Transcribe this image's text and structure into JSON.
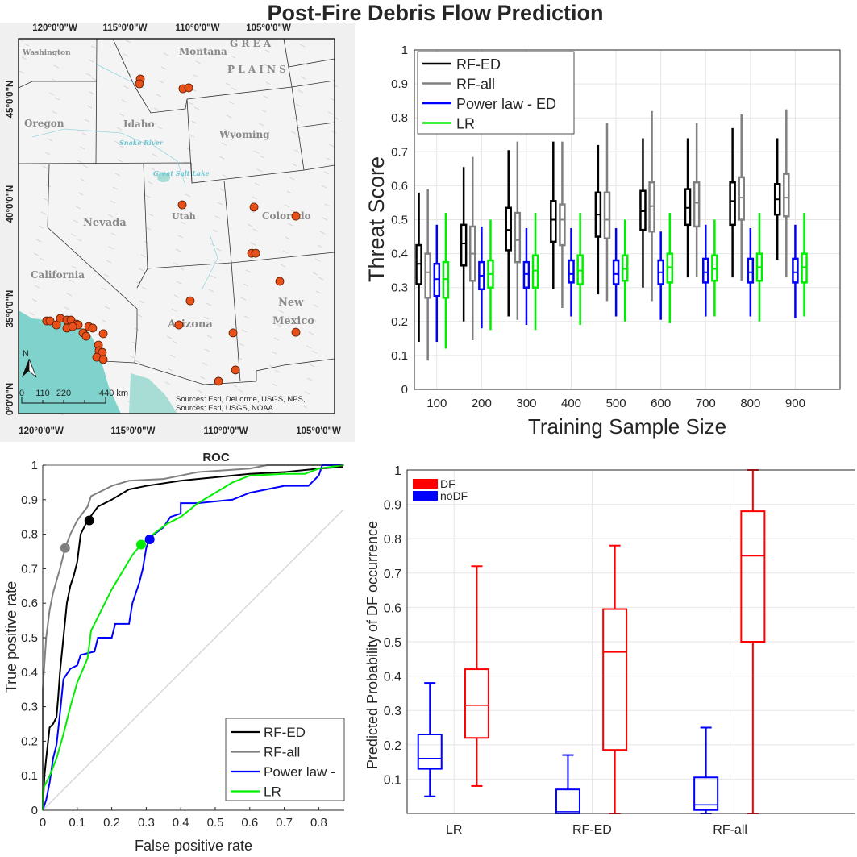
{
  "title": "Post-Fire Debris Flow Prediction",
  "map": {
    "top_ticks": [
      "120°0'0\"W",
      "115°0'0\"W",
      "110°0'0\"W",
      "105°0'0\"W"
    ],
    "bottom_ticks": [
      "120°0'0\"W",
      "115°0'0\"W",
      "110°0'0\"W",
      "105°0'0\"W"
    ],
    "left_ticks": [
      "45°0'0\"N",
      "40°0'0\"N",
      "35°0'0\"N",
      "0°0'0\"N"
    ],
    "labels": [
      "Washington",
      "Montana",
      "Oregon",
      "Idaho",
      "Wyoming",
      "Nevada",
      "Utah",
      "Colorado",
      "California",
      "Arizona",
      "New",
      "Mexico",
      "G R E A",
      "P L A I N S",
      "Snake River",
      "Great Salt Lake"
    ],
    "north": "N",
    "scale_bar": [
      "0",
      "110",
      "220",
      "440 km"
    ],
    "sources": [
      "Sources: Esri, DeLorme, USGS, NPS,",
      "Sources: Esri, USGS, NOAA"
    ],
    "point_color": "#e8501a",
    "points_lonlat": [
      [
        -114.65,
        45.96
      ],
      [
        -114.7,
        45.73
      ],
      [
        -112.35,
        45.5
      ],
      [
        -112.04,
        45.54
      ],
      [
        -112.39,
        39.96
      ],
      [
        -108.52,
        39.85
      ],
      [
        -106.26,
        39.42
      ],
      [
        -108.65,
        37.65
      ],
      [
        -108.43,
        37.65
      ],
      [
        -107.13,
        36.31
      ],
      [
        -111.96,
        35.38
      ],
      [
        -112.57,
        34.23
      ],
      [
        -109.65,
        33.85
      ],
      [
        -106.26,
        33.88
      ],
      [
        -109.52,
        32.08
      ],
      [
        -110.43,
        31.54
      ],
      [
        -119.7,
        34.42
      ],
      [
        -119.52,
        34.42
      ],
      [
        -119.17,
        34.23
      ],
      [
        -118.96,
        34.54
      ],
      [
        -118.61,
        34.46
      ],
      [
        -118.61,
        34.08
      ],
      [
        -118.39,
        34.46
      ],
      [
        -118.09,
        34.27
      ],
      [
        -118.0,
        34.23
      ],
      [
        -118.3,
        34.15
      ],
      [
        -117.74,
        33.85
      ],
      [
        -117.57,
        33.69
      ],
      [
        -117.43,
        34.15
      ],
      [
        -117.22,
        34.08
      ],
      [
        -116.65,
        33.81
      ],
      [
        -116.91,
        33.27
      ],
      [
        -116.87,
        33.0
      ],
      [
        -116.7,
        32.92
      ],
      [
        -117.0,
        32.69
      ],
      [
        -116.65,
        32.58
      ]
    ]
  },
  "chart_data": [
    {
      "type": "line",
      "title": "ROC",
      "xlabel": "False positive rate",
      "ylabel": "True positive rate",
      "xlim": [
        0,
        0.87
      ],
      "ylim": [
        0,
        1
      ],
      "xticks": [
        "0",
        "0.1",
        "0.2",
        "0.3",
        "0.4",
        "0.5",
        "0.6",
        "0.7",
        "0.8"
      ],
      "yticks": [
        "0",
        "0.1",
        "0.2",
        "0.3",
        "0.4",
        "0.5",
        "0.6",
        "0.7",
        "0.8",
        "0.9",
        "1"
      ],
      "grid": false,
      "legend_position": "bottom-right",
      "series": [
        {
          "name": "RF-ED",
          "color": "#000000",
          "marker": [
            0.135,
            0.84
          ],
          "points": [
            [
              0,
              0
            ],
            [
              0.005,
              0.1
            ],
            [
              0.01,
              0.15
            ],
            [
              0.02,
              0.24
            ],
            [
              0.03,
              0.25
            ],
            [
              0.04,
              0.27
            ],
            [
              0.045,
              0.33
            ],
            [
              0.05,
              0.4
            ],
            [
              0.06,
              0.5
            ],
            [
              0.065,
              0.55
            ],
            [
              0.07,
              0.6
            ],
            [
              0.08,
              0.65
            ],
            [
              0.09,
              0.68
            ],
            [
              0.1,
              0.72
            ],
            [
              0.11,
              0.8
            ],
            [
              0.13,
              0.84
            ],
            [
              0.16,
              0.88
            ],
            [
              0.2,
              0.9
            ],
            [
              0.25,
              0.93
            ],
            [
              0.3,
              0.94
            ],
            [
              0.4,
              0.955
            ],
            [
              0.5,
              0.965
            ],
            [
              0.6,
              0.975
            ],
            [
              0.7,
              0.98
            ],
            [
              0.8,
              0.99
            ],
            [
              0.87,
              0.995
            ]
          ]
        },
        {
          "name": "RF-all",
          "color": "#808080",
          "marker": [
            0.065,
            0.76
          ],
          "points": [
            [
              0,
              0
            ],
            [
              0,
              0.35
            ],
            [
              0.01,
              0.5
            ],
            [
              0.02,
              0.58
            ],
            [
              0.03,
              0.63
            ],
            [
              0.05,
              0.7
            ],
            [
              0.065,
              0.76
            ],
            [
              0.08,
              0.8
            ],
            [
              0.1,
              0.84
            ],
            [
              0.13,
              0.88
            ],
            [
              0.14,
              0.91
            ],
            [
              0.2,
              0.94
            ],
            [
              0.25,
              0.955
            ],
            [
              0.35,
              0.96
            ],
            [
              0.45,
              0.98
            ],
            [
              0.6,
              0.99
            ],
            [
              0.65,
              1
            ],
            [
              0.87,
              1
            ]
          ]
        },
        {
          "name": "Power law -",
          "color": "#0000ff",
          "marker": [
            0.31,
            0.785
          ],
          "points": [
            [
              0,
              0
            ],
            [
              0.01,
              0.03
            ],
            [
              0.02,
              0.08
            ],
            [
              0.03,
              0.15
            ],
            [
              0.04,
              0.19
            ],
            [
              0.05,
              0.28
            ],
            [
              0.06,
              0.38
            ],
            [
              0.08,
              0.41
            ],
            [
              0.1,
              0.42
            ],
            [
              0.11,
              0.45
            ],
            [
              0.15,
              0.46
            ],
            [
              0.16,
              0.5
            ],
            [
              0.2,
              0.5
            ],
            [
              0.21,
              0.54
            ],
            [
              0.25,
              0.54
            ],
            [
              0.26,
              0.6
            ],
            [
              0.28,
              0.66
            ],
            [
              0.29,
              0.7
            ],
            [
              0.3,
              0.76
            ],
            [
              0.31,
              0.79
            ],
            [
              0.35,
              0.82
            ],
            [
              0.37,
              0.85
            ],
            [
              0.4,
              0.86
            ],
            [
              0.4,
              0.89
            ],
            [
              0.45,
              0.89
            ],
            [
              0.55,
              0.9
            ],
            [
              0.6,
              0.92
            ],
            [
              0.7,
              0.94
            ],
            [
              0.77,
              0.94
            ],
            [
              0.8,
              0.97
            ],
            [
              0.81,
              1
            ],
            [
              0.87,
              1
            ]
          ]
        },
        {
          "name": "LR",
          "color": "#00ee00",
          "marker": [
            0.285,
            0.77
          ],
          "points": [
            [
              0,
              0
            ],
            [
              0,
              0.06
            ],
            [
              0.02,
              0.1
            ],
            [
              0.04,
              0.15
            ],
            [
              0.06,
              0.22
            ],
            [
              0.08,
              0.3
            ],
            [
              0.1,
              0.37
            ],
            [
              0.13,
              0.44
            ],
            [
              0.14,
              0.52
            ],
            [
              0.17,
              0.58
            ],
            [
              0.2,
              0.64
            ],
            [
              0.23,
              0.69
            ],
            [
              0.26,
              0.74
            ],
            [
              0.285,
              0.77
            ],
            [
              0.32,
              0.8
            ],
            [
              0.36,
              0.83
            ],
            [
              0.4,
              0.85
            ],
            [
              0.45,
              0.89
            ],
            [
              0.5,
              0.92
            ],
            [
              0.55,
              0.95
            ],
            [
              0.6,
              0.97
            ],
            [
              0.7,
              0.975
            ],
            [
              0.76,
              0.975
            ],
            [
              0.8,
              0.99
            ],
            [
              0.87,
              1
            ]
          ]
        }
      ]
    },
    {
      "type": "box",
      "xlabel": "Training Sample Size",
      "ylabel": "Threat Score",
      "ylim": [
        0,
        1
      ],
      "categories": [
        "100",
        "200",
        "300",
        "400",
        "500",
        "600",
        "700",
        "800",
        "900"
      ],
      "yticks": [
        "0",
        "0.1",
        "0.2",
        "0.3",
        "0.4",
        "0.5",
        "0.6",
        "0.7",
        "0.8",
        "0.9",
        "1"
      ],
      "grid": true,
      "legend_position": "top-left",
      "box_stats_order": [
        "min",
        "q1",
        "median",
        "q3",
        "max"
      ],
      "series": [
        {
          "name": "RF-ED",
          "color": "#000000",
          "boxes": [
            [
              0.14,
              0.31,
              0.37,
              0.425,
              0.58
            ],
            [
              0.2,
              0.365,
              0.43,
              0.485,
              0.655
            ],
            [
              0.215,
              0.41,
              0.47,
              0.535,
              0.705
            ],
            [
              0.295,
              0.435,
              0.5,
              0.555,
              0.73
            ],
            [
              0.28,
              0.45,
              0.515,
              0.58,
              0.72
            ],
            [
              0.3,
              0.47,
              0.525,
              0.585,
              0.74
            ],
            [
              0.33,
              0.485,
              0.535,
              0.59,
              0.74
            ],
            [
              0.33,
              0.485,
              0.555,
              0.61,
              0.77
            ],
            [
              0.38,
              0.515,
              0.56,
              0.605,
              0.74
            ]
          ]
        },
        {
          "name": "RF-all",
          "color": "#808080",
          "boxes": [
            [
              0.085,
              0.27,
              0.345,
              0.4,
              0.59
            ],
            [
              0.145,
              0.32,
              0.4,
              0.48,
              0.685
            ],
            [
              0.205,
              0.375,
              0.44,
              0.52,
              0.73
            ],
            [
              0.24,
              0.425,
              0.5,
              0.545,
              0.73
            ],
            [
              0.26,
              0.445,
              0.5,
              0.58,
              0.785
            ],
            [
              0.26,
              0.465,
              0.54,
              0.61,
              0.82
            ],
            [
              0.33,
              0.48,
              0.55,
              0.61,
              0.785
            ],
            [
              0.32,
              0.5,
              0.565,
              0.625,
              0.81
            ],
            [
              0.33,
              0.51,
              0.565,
              0.635,
              0.825
            ]
          ]
        },
        {
          "name": "Power law - ED",
          "color": "#0000ff",
          "boxes": [
            [
              0.14,
              0.275,
              0.325,
              0.37,
              0.485
            ],
            [
              0.18,
              0.295,
              0.335,
              0.375,
              0.48
            ],
            [
              0.19,
              0.3,
              0.34,
              0.375,
              0.475
            ],
            [
              0.215,
              0.315,
              0.34,
              0.38,
              0.475
            ],
            [
              0.215,
              0.31,
              0.34,
              0.38,
              0.475
            ],
            [
              0.205,
              0.31,
              0.345,
              0.38,
              0.465
            ],
            [
              0.215,
              0.315,
              0.345,
              0.385,
              0.485
            ],
            [
              0.215,
              0.315,
              0.345,
              0.385,
              0.475
            ],
            [
              0.21,
              0.315,
              0.345,
              0.385,
              0.485
            ]
          ]
        },
        {
          "name": "LR",
          "color": "#00ee00",
          "boxes": [
            [
              0.12,
              0.27,
              0.325,
              0.375,
              0.52
            ],
            [
              0.175,
              0.3,
              0.34,
              0.38,
              0.5
            ],
            [
              0.175,
              0.3,
              0.35,
              0.395,
              0.52
            ],
            [
              0.19,
              0.31,
              0.35,
              0.395,
              0.52
            ],
            [
              0.2,
              0.32,
              0.355,
              0.395,
              0.5
            ],
            [
              0.195,
              0.315,
              0.36,
              0.4,
              0.52
            ],
            [
              0.215,
              0.32,
              0.355,
              0.395,
              0.5
            ],
            [
              0.2,
              0.32,
              0.36,
              0.4,
              0.52
            ],
            [
              0.215,
              0.315,
              0.36,
              0.4,
              0.52
            ]
          ]
        }
      ]
    },
    {
      "type": "box",
      "ylabel": "Predicted Probability of DF occurrence",
      "ylim": [
        0,
        1
      ],
      "categories": [
        "LR",
        "RF-ED",
        "RF-all"
      ],
      "yticks": [
        "0.1",
        "0.2",
        "0.3",
        "0.4",
        "0.5",
        "0.6",
        "0.7",
        "0.8",
        "0.9",
        "1"
      ],
      "grid": true,
      "legend_position": "top-left",
      "box_stats_order": [
        "min",
        "q1",
        "median",
        "q3",
        "max"
      ],
      "series": [
        {
          "name": "noDF",
          "color": "#0000ff",
          "boxes": [
            [
              0.05,
              0.13,
              0.16,
              0.23,
              0.38
            ],
            [
              0.0,
              0.0,
              0.005,
              0.07,
              0.17
            ],
            [
              0.0,
              0.01,
              0.025,
              0.105,
              0.25
            ]
          ]
        },
        {
          "name": "DF",
          "color": "#ff0000",
          "boxes": [
            [
              0.08,
              0.22,
              0.315,
              0.42,
              0.72
            ],
            [
              0.0,
              0.185,
              0.47,
              0.595,
              0.78
            ],
            [
              0.0,
              0.5,
              0.75,
              0.88,
              1.0
            ]
          ]
        }
      ],
      "legend_order": [
        "DF",
        "noDF"
      ]
    }
  ]
}
